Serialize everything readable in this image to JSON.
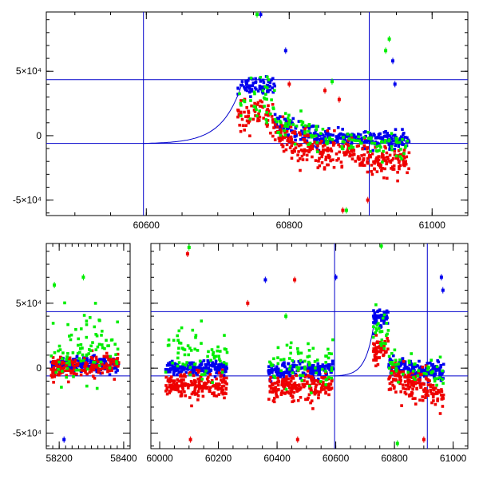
{
  "colors": {
    "blue": "#0000ee",
    "red": "#ee0000",
    "green": "#00ee00",
    "line": "#0000cc"
  },
  "chart_data": [
    {
      "type": "scatter",
      "title": "",
      "xlabel": "",
      "ylabel": "",
      "xlim": [
        60460,
        61050
      ],
      "ylim": [
        -62000,
        96000
      ],
      "yticks": [
        {
          "value": 50000,
          "label": "5×10⁴"
        },
        {
          "value": 0,
          "label": "0"
        },
        {
          "value": -50000,
          "label": "-5×10⁴"
        }
      ],
      "xticks": [
        {
          "value": 60600,
          "label": "60600"
        },
        {
          "value": 60800,
          "label": "60800"
        },
        {
          "value": 61000,
          "label": "61000"
        }
      ],
      "vlines": [
        60596,
        60912
      ],
      "hlines": [
        43500,
        -6000
      ],
      "model_curve": {
        "start": 60596,
        "rise_end": 60735,
        "peak": 42000,
        "baseline": -6000
      },
      "series": [
        {
          "name": "blue",
          "color_key": "blue",
          "segments": [
            {
              "x0": 60728,
              "x1": 60780,
              "y0": 38000,
              "y1": 40000,
              "spread": 3500,
              "n": 70
            },
            {
              "x0": 60780,
              "x1": 60840,
              "y0": 8000,
              "y1": 0,
              "spread": 4000,
              "n": 90
            },
            {
              "x0": 60840,
              "x1": 60968,
              "y0": -1000,
              "y1": -4000,
              "spread": 3000,
              "n": 190
            }
          ],
          "outliers": [
            [
              60760,
              94000
            ],
            [
              60795,
              66000
            ],
            [
              60945,
              58000
            ],
            [
              60948,
              40000
            ]
          ]
        },
        {
          "name": "red",
          "color_key": "red",
          "segments": [
            {
              "x0": 60728,
              "x1": 60780,
              "y0": 14000,
              "y1": 15000,
              "spread": 6000,
              "n": 70
            },
            {
              "x0": 60780,
              "x1": 60840,
              "y0": 0,
              "y1": -12000,
              "spread": 7000,
              "n": 110
            },
            {
              "x0": 60840,
              "x1": 60968,
              "y0": -14000,
              "y1": -20000,
              "spread": 6000,
              "n": 210
            }
          ],
          "outliers": [
            [
              60850,
              35000
            ],
            [
              60800,
              40000
            ],
            [
              60875,
              -58000
            ],
            [
              60910,
              -50000
            ],
            [
              60870,
              28000
            ]
          ]
        },
        {
          "name": "green",
          "color_key": "green",
          "segments": [
            {
              "x0": 60728,
              "x1": 60780,
              "y0": 30000,
              "y1": 26000,
              "spread": 8000,
              "n": 35
            },
            {
              "x0": 60780,
              "x1": 60840,
              "y0": 10000,
              "y1": 0,
              "spread": 6000,
              "n": 45
            },
            {
              "x0": 60840,
              "x1": 60968,
              "y0": -2000,
              "y1": -8000,
              "spread": 5000,
              "n": 70
            }
          ],
          "outliers": [
            [
              60755,
              94000
            ],
            [
              60935,
              66000
            ],
            [
              60940,
              75000
            ],
            [
              60860,
              42000
            ],
            [
              60880,
              -58000
            ]
          ]
        }
      ]
    },
    {
      "type": "scatter",
      "title": "",
      "xlabel": "",
      "ylabel": "",
      "broken_axis": true,
      "ylim": [
        -62000,
        96000
      ],
      "yticks": [
        {
          "value": 50000,
          "label": "5×10⁴"
        },
        {
          "value": 0,
          "label": "0"
        },
        {
          "value": -50000,
          "label": "-5×10⁴"
        }
      ],
      "panels": [
        {
          "xlim": [
            58160,
            58420
          ],
          "xticks": [
            {
              "value": 58200,
              "label": "58200"
            },
            {
              "value": 58400,
              "label": "58400"
            }
          ]
        },
        {
          "xlim": [
            59970,
            61050
          ],
          "xticks": [
            {
              "value": 60000,
              "label": "60000"
            },
            {
              "value": 60200,
              "label": "60200"
            },
            {
              "value": 60400,
              "label": "60400"
            },
            {
              "value": 60600,
              "label": "60600"
            },
            {
              "value": 60800,
              "label": "60800"
            },
            {
              "value": 61000,
              "label": "61000"
            }
          ]
        }
      ],
      "vlines": [
        60596,
        60912
      ],
      "hlines": [
        43500,
        -6000
      ],
      "model_curve": {
        "start": 60596,
        "rise_end": 60735,
        "peak": 42000,
        "baseline": -6000
      },
      "series": [
        {
          "name": "blue",
          "color_key": "blue",
          "segments": [
            {
              "panel": 0,
              "x0": 58175,
              "x1": 58385,
              "y0": 2000,
              "y1": 3000,
              "spread": 3000,
              "n": 180
            },
            {
              "panel": 1,
              "x0": 60020,
              "x1": 60230,
              "y0": 0,
              "y1": 0,
              "spread": 2500,
              "n": 180
            },
            {
              "panel": 1,
              "x0": 60370,
              "x1": 60590,
              "y0": -2000,
              "y1": -1000,
              "spread": 3000,
              "n": 180
            },
            {
              "panel": 1,
              "x0": 60728,
              "x1": 60780,
              "y0": 38000,
              "y1": 40000,
              "spread": 3500,
              "n": 50
            },
            {
              "panel": 1,
              "x0": 60780,
              "x1": 60968,
              "y0": 2000,
              "y1": -4000,
              "spread": 3500,
              "n": 170
            }
          ],
          "outliers": [
            [
              58215,
              -55000
            ],
            [
              60360,
              68000
            ],
            [
              60600,
              70000
            ],
            [
              60960,
              70000
            ],
            [
              60965,
              60000
            ]
          ]
        },
        {
          "name": "red",
          "color_key": "red",
          "segments": [
            {
              "panel": 0,
              "x0": 58175,
              "x1": 58385,
              "y0": 0,
              "y1": 2000,
              "spread": 4500,
              "n": 180
            },
            {
              "panel": 1,
              "x0": 60020,
              "x1": 60230,
              "y0": -14000,
              "y1": -14000,
              "spread": 5000,
              "n": 200
            },
            {
              "panel": 1,
              "x0": 60370,
              "x1": 60590,
              "y0": -16000,
              "y1": -14000,
              "spread": 5000,
              "n": 200
            },
            {
              "panel": 1,
              "x0": 60728,
              "x1": 60780,
              "y0": 15000,
              "y1": 14000,
              "spread": 5000,
              "n": 50
            },
            {
              "panel": 1,
              "x0": 60780,
              "x1": 60968,
              "y0": -5000,
              "y1": -20000,
              "spread": 6000,
              "n": 180
            }
          ],
          "outliers": [
            [
              60095,
              88000
            ],
            [
              60105,
              -55000
            ],
            [
              60460,
              68000
            ],
            [
              60470,
              -55000
            ],
            [
              60300,
              50000
            ],
            [
              60900,
              -55000
            ]
          ]
        },
        {
          "name": "green",
          "color_key": "green",
          "segments": [
            {
              "panel": 0,
              "x0": 58175,
              "x1": 58385,
              "y0": 10000,
              "y1": 20000,
              "spread": 14000,
              "n": 90
            },
            {
              "panel": 1,
              "x0": 60020,
              "x1": 60230,
              "y0": 10000,
              "y1": 10000,
              "spread": 10000,
              "n": 70
            },
            {
              "panel": 1,
              "x0": 60370,
              "x1": 60590,
              "y0": 5000,
              "y1": 5000,
              "spread": 8000,
              "n": 70
            },
            {
              "panel": 1,
              "x0": 60728,
              "x1": 60780,
              "y0": 30000,
              "y1": 26000,
              "spread": 8000,
              "n": 25
            },
            {
              "panel": 1,
              "x0": 60780,
              "x1": 60968,
              "y0": 4000,
              "y1": -8000,
              "spread": 6000,
              "n": 50
            }
          ],
          "outliers": [
            [
              58185,
              64000
            ],
            [
              58275,
              70000
            ],
            [
              60100,
              93000
            ],
            [
              60755,
              94000
            ],
            [
              60810,
              -58000
            ],
            [
              60430,
              40000
            ]
          ]
        }
      ]
    }
  ]
}
